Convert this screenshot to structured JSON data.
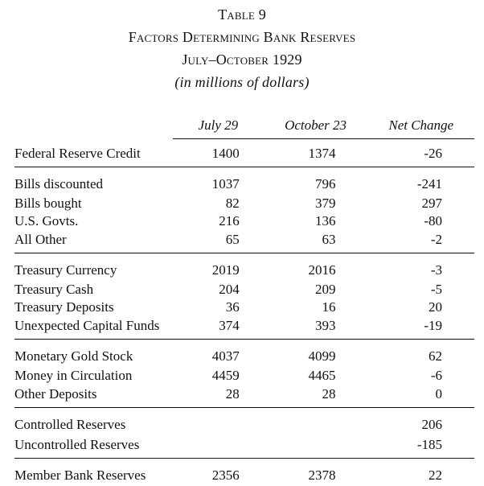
{
  "title": {
    "table_label": "Table 9",
    "heading": "Factors Determining Bank Reserves",
    "period": "July–October 1929",
    "units": "(in millions of dollars)"
  },
  "columns": [
    "",
    "July 29",
    "October 23",
    "Net Change"
  ],
  "groups": [
    {
      "rows": [
        {
          "label": "Federal Reserve Credit",
          "jul": "1400",
          "oct": "1374",
          "chg": "-26"
        }
      ]
    },
    {
      "rows": [
        {
          "label": "Bills discounted",
          "jul": "1037",
          "oct": "796",
          "chg": "-241"
        },
        {
          "label": "Bills bought",
          "jul": "82",
          "oct": "379",
          "chg": "297"
        },
        {
          "label": "U.S. Govts.",
          "jul": "216",
          "oct": "136",
          "chg": "-80"
        },
        {
          "label": "All Other",
          "jul": "65",
          "oct": "63",
          "chg": "-2"
        }
      ]
    },
    {
      "rows": [
        {
          "label": "Treasury Currency",
          "jul": "2019",
          "oct": "2016",
          "chg": "-3"
        },
        {
          "label": "Treasury Cash",
          "jul": "204",
          "oct": "209",
          "chg": "-5"
        },
        {
          "label": "Treasury Deposits",
          "jul": "36",
          "oct": "16",
          "chg": "20"
        },
        {
          "label": "Unexpected Capital Funds",
          "jul": "374",
          "oct": "393",
          "chg": "-19"
        }
      ]
    },
    {
      "rows": [
        {
          "label": "Monetary Gold Stock",
          "jul": "4037",
          "oct": "4099",
          "chg": "62"
        },
        {
          "label": "Money in Circulation",
          "jul": "4459",
          "oct": "4465",
          "chg": "-6"
        },
        {
          "label": "Other Deposits",
          "jul": "28",
          "oct": "28",
          "chg": "0"
        }
      ]
    },
    {
      "rows": [
        {
          "label": "Controlled Reserves",
          "jul": "",
          "oct": "",
          "chg": "206"
        },
        {
          "label": "Uncontrolled Reserves",
          "jul": "",
          "oct": "",
          "chg": "-185"
        }
      ]
    },
    {
      "rows": [
        {
          "label": "Member Bank Reserves",
          "jul": "2356",
          "oct": "2378",
          "chg": "22"
        }
      ]
    }
  ]
}
